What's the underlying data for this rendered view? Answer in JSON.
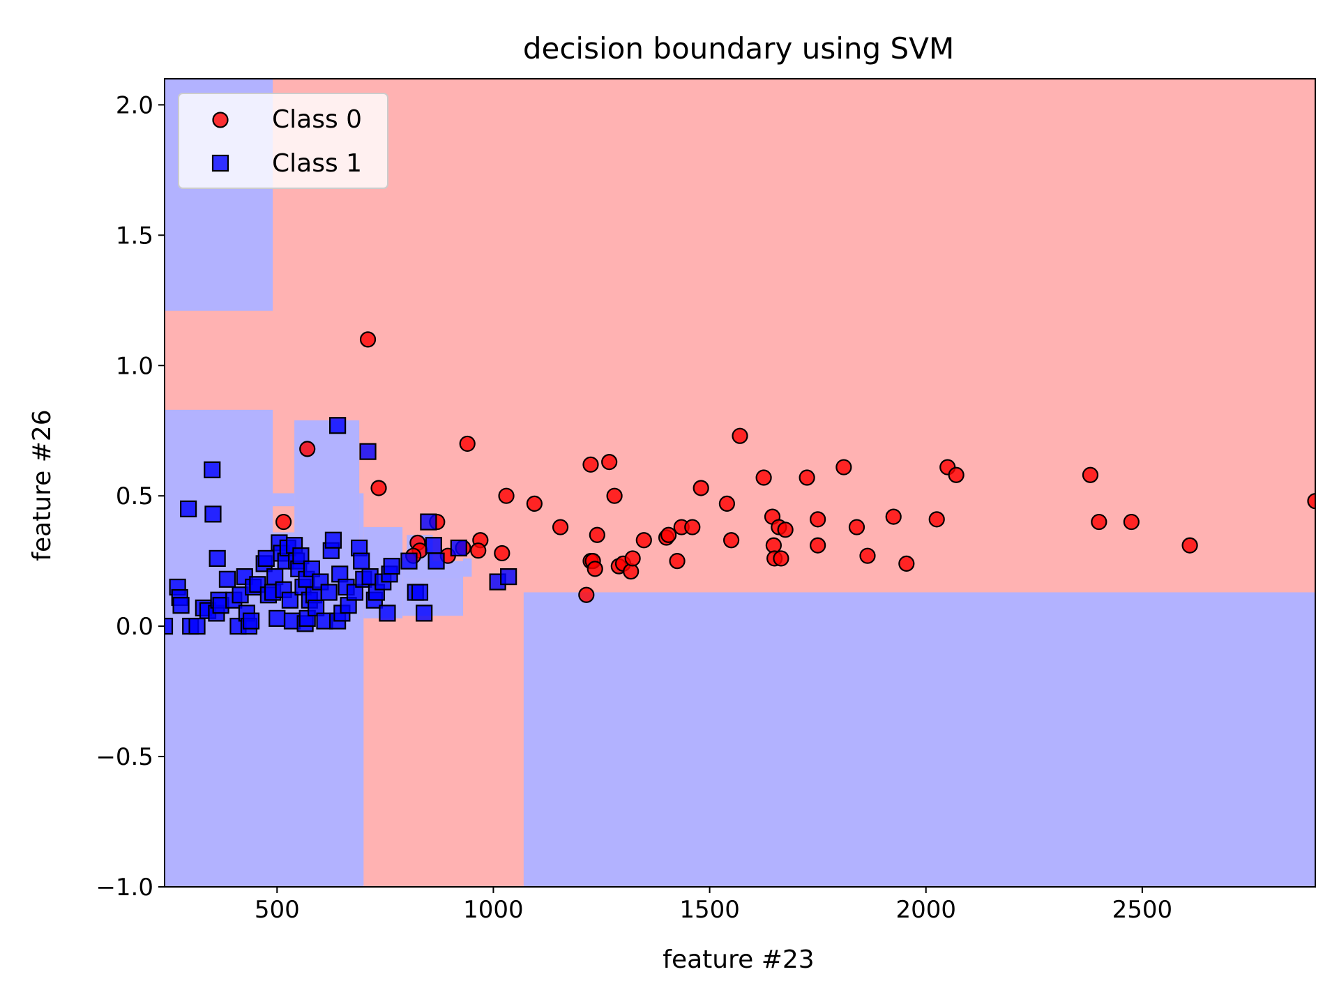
{
  "chart_data": {
    "type": "scatter",
    "title": "decision boundary using SVM",
    "xlabel": "feature #23",
    "ylabel": "feature #26",
    "xlim": [
      240,
      2900
    ],
    "ylim": [
      -1.0,
      2.1
    ],
    "x_ticks": [
      500,
      1000,
      1500,
      2000,
      2500
    ],
    "x_tick_labels": [
      "500",
      "1000",
      "1500",
      "2000",
      "2500"
    ],
    "y_ticks": [
      -1.0,
      -0.5,
      0.0,
      0.5,
      1.0,
      1.5,
      2.0
    ],
    "y_tick_labels": [
      "−1.0",
      "−0.5",
      "0.0",
      "0.5",
      "1.0",
      "1.5",
      "2.0"
    ],
    "grid": false,
    "legend_position": "top-left",
    "legend": [
      {
        "label": "Class 0",
        "marker": "circle",
        "color": "#ff0000"
      },
      {
        "label": "Class 1",
        "marker": "square",
        "color": "#0000ff"
      }
    ],
    "decision_regions": {
      "background_class": "Class 0",
      "background_color": "#ffb2b2",
      "other_color": "#b2b2ff",
      "class1_regions": [
        {
          "x": [
            240,
            490
          ],
          "y": [
            1.21,
            2.1
          ]
        },
        {
          "x": [
            240,
            700
          ],
          "y": [
            -1.0,
            0.03
          ]
        },
        {
          "x": [
            1070,
            2900
          ],
          "y": [
            -1.0,
            0.13
          ]
        },
        {
          "x": [
            240,
            490
          ],
          "y": [
            0.03,
            0.83
          ]
        },
        {
          "x": [
            490,
            540
          ],
          "y": [
            0.03,
            0.51
          ]
        },
        {
          "x": [
            540,
            690
          ],
          "y": [
            0.03,
            0.79
          ]
        },
        {
          "x": [
            690,
            700
          ],
          "y": [
            0.03,
            0.51
          ]
        },
        {
          "x": [
            700,
            790
          ],
          "y": [
            0.03,
            0.38
          ]
        },
        {
          "x": [
            790,
            930
          ],
          "y": [
            0.04,
            0.18
          ]
        },
        {
          "x": [
            790,
            930
          ],
          "y": [
            0.18,
            0.25
          ]
        },
        {
          "x": [
            800,
            860
          ],
          "y": [
            0.25,
            0.35
          ]
        },
        {
          "x": [
            930,
            950
          ],
          "y": [
            0.19,
            0.26
          ]
        }
      ],
      "class0_regions": [
        {
          "x": [
            490,
            540
          ],
          "y": [
            0.36,
            0.46
          ]
        },
        {
          "x": [
            830,
            860
          ],
          "y": [
            0.38,
            0.45
          ]
        }
      ]
    },
    "series": [
      {
        "name": "Class 0",
        "marker": "circle",
        "color": "#ff0000",
        "points": [
          [
            710,
            1.1
          ],
          [
            570,
            0.68
          ],
          [
            515,
            0.4
          ],
          [
            735,
            0.53
          ],
          [
            940,
            0.7
          ],
          [
            825,
            0.32
          ],
          [
            830,
            0.29
          ],
          [
            815,
            0.27
          ],
          [
            870,
            0.4
          ],
          [
            895,
            0.27
          ],
          [
            930,
            0.3
          ],
          [
            970,
            0.33
          ],
          [
            965,
            0.29
          ],
          [
            1020,
            0.28
          ],
          [
            1030,
            0.5
          ],
          [
            1095,
            0.47
          ],
          [
            1155,
            0.38
          ],
          [
            1225,
            0.62
          ],
          [
            1225,
            0.25
          ],
          [
            1230,
            0.25
          ],
          [
            1235,
            0.22
          ],
          [
            1240,
            0.35
          ],
          [
            1268,
            0.63
          ],
          [
            1280,
            0.5
          ],
          [
            1290,
            0.23
          ],
          [
            1300,
            0.24
          ],
          [
            1318,
            0.21
          ],
          [
            1322,
            0.26
          ],
          [
            1348,
            0.33
          ],
          [
            1400,
            0.34
          ],
          [
            1405,
            0.35
          ],
          [
            1425,
            0.25
          ],
          [
            1435,
            0.38
          ],
          [
            1460,
            0.38
          ],
          [
            1480,
            0.53
          ],
          [
            1540,
            0.47
          ],
          [
            1550,
            0.33
          ],
          [
            1570,
            0.73
          ],
          [
            1625,
            0.57
          ],
          [
            1645,
            0.42
          ],
          [
            1648,
            0.31
          ],
          [
            1650,
            0.26
          ],
          [
            1660,
            0.38
          ],
          [
            1665,
            0.26
          ],
          [
            1675,
            0.37
          ],
          [
            1725,
            0.57
          ],
          [
            1750,
            0.41
          ],
          [
            1750,
            0.31
          ],
          [
            1810,
            0.61
          ],
          [
            1840,
            0.38
          ],
          [
            1865,
            0.27
          ],
          [
            1925,
            0.42
          ],
          [
            1955,
            0.24
          ],
          [
            2025,
            0.41
          ],
          [
            2050,
            0.61
          ],
          [
            2070,
            0.58
          ],
          [
            1215,
            0.12
          ],
          [
            2380,
            0.58
          ],
          [
            2400,
            0.4
          ],
          [
            2475,
            0.4
          ],
          [
            2610,
            0.31
          ],
          [
            2900,
            0.48
          ]
        ]
      },
      {
        "name": "Class 1",
        "marker": "square",
        "color": "#0000ff",
        "points": [
          [
            240,
            0.0
          ],
          [
            270,
            0.15
          ],
          [
            275,
            0.11
          ],
          [
            278,
            0.08
          ],
          [
            295,
            0.45
          ],
          [
            300,
            0.0
          ],
          [
            315,
            0.0
          ],
          [
            330,
            0.07
          ],
          [
            340,
            0.06
          ],
          [
            350,
            0.6
          ],
          [
            352,
            0.43
          ],
          [
            362,
            0.26
          ],
          [
            360,
            0.05
          ],
          [
            365,
            0.1
          ],
          [
            370,
            0.08
          ],
          [
            385,
            0.18
          ],
          [
            400,
            0.1
          ],
          [
            410,
            0.0
          ],
          [
            415,
            0.12
          ],
          [
            425,
            0.19
          ],
          [
            430,
            0.05
          ],
          [
            435,
            0.0
          ],
          [
            440,
            0.02
          ],
          [
            445,
            0.15
          ],
          [
            455,
            0.16
          ],
          [
            470,
            0.24
          ],
          [
            475,
            0.26
          ],
          [
            480,
            0.12
          ],
          [
            490,
            0.13
          ],
          [
            495,
            0.19
          ],
          [
            500,
            0.03
          ],
          [
            505,
            0.32
          ],
          [
            510,
            0.28
          ],
          [
            515,
            0.14
          ],
          [
            520,
            0.25
          ],
          [
            525,
            0.3
          ],
          [
            530,
            0.1
          ],
          [
            535,
            0.02
          ],
          [
            540,
            0.31
          ],
          [
            545,
            0.25
          ],
          [
            550,
            0.22
          ],
          [
            555,
            0.27
          ],
          [
            560,
            0.15
          ],
          [
            565,
            0.01
          ],
          [
            568,
            0.18
          ],
          [
            570,
            0.03
          ],
          [
            575,
            0.1
          ],
          [
            580,
            0.22
          ],
          [
            585,
            0.12
          ],
          [
            590,
            0.07
          ],
          [
            600,
            0.17
          ],
          [
            610,
            0.02
          ],
          [
            620,
            0.13
          ],
          [
            625,
            0.29
          ],
          [
            630,
            0.33
          ],
          [
            640,
            0.02
          ],
          [
            645,
            0.2
          ],
          [
            640,
            0.77
          ],
          [
            650,
            0.05
          ],
          [
            660,
            0.15
          ],
          [
            665,
            0.08
          ],
          [
            680,
            0.13
          ],
          [
            690,
            0.3
          ],
          [
            695,
            0.25
          ],
          [
            700,
            0.18
          ],
          [
            710,
            0.67
          ],
          [
            715,
            0.19
          ],
          [
            725,
            0.1
          ],
          [
            730,
            0.13
          ],
          [
            745,
            0.17
          ],
          [
            755,
            0.05
          ],
          [
            760,
            0.2
          ],
          [
            765,
            0.23
          ],
          [
            805,
            0.25
          ],
          [
            820,
            0.13
          ],
          [
            830,
            0.13
          ],
          [
            840,
            0.05
          ],
          [
            850,
            0.4
          ],
          [
            862,
            0.31
          ],
          [
            868,
            0.25
          ],
          [
            920,
            0.3
          ],
          [
            1010,
            0.17
          ],
          [
            1035,
            0.19
          ]
        ]
      }
    ]
  }
}
